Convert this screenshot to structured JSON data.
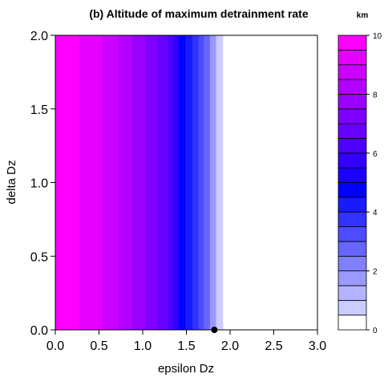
{
  "chart_data": {
    "type": "heatmap",
    "title": "(b) Altitude of maximum detrainment rate",
    "xlabel": "epsilon Dz",
    "ylabel": "delta Dz",
    "xlim": [
      0.0,
      3.0
    ],
    "ylim": [
      0.0,
      2.0
    ],
    "xticks": [
      "0.0",
      "0.5",
      "1.0",
      "1.5",
      "2.0",
      "2.5",
      "3.0"
    ],
    "yticks": [
      "0.0",
      "0.5",
      "1.0",
      "1.5",
      "2.0"
    ],
    "colorbar": {
      "unit": "km",
      "range": [
        0,
        10
      ],
      "tick_labels": [
        "0",
        "2",
        "4",
        "6",
        "8",
        "10"
      ],
      "level_colors": [
        "#ffffff",
        "#e6e6ff",
        "#ccccff",
        "#b3b3ff",
        "#9999ff",
        "#8080ff",
        "#6666ff",
        "#4d4dff",
        "#3333ff",
        "#1a1aff",
        "#0000ff",
        "#1a00ff",
        "#3300ff",
        "#4d00ff",
        "#6600ff",
        "#8000ff",
        "#9900ff",
        "#b300ff",
        "#cc00ff",
        "#e600ff",
        "#ff00ff"
      ]
    },
    "band_edges_x": [
      0.0,
      0.27,
      0.54,
      0.72,
      0.88,
      1.03,
      1.17,
      1.29,
      1.35,
      1.41,
      1.49,
      1.57,
      1.64,
      1.7,
      1.77,
      1.84,
      1.92,
      3.0
    ],
    "band_levels": [
      10.0,
      9.5,
      9.0,
      8.5,
      8.0,
      7.5,
      7.0,
      6.5,
      6.0,
      5.0,
      4.5,
      4.0,
      3.5,
      3.0,
      2.0,
      1.0,
      0.0
    ],
    "marker": {
      "x": 1.82,
      "y": 0.0
    }
  }
}
